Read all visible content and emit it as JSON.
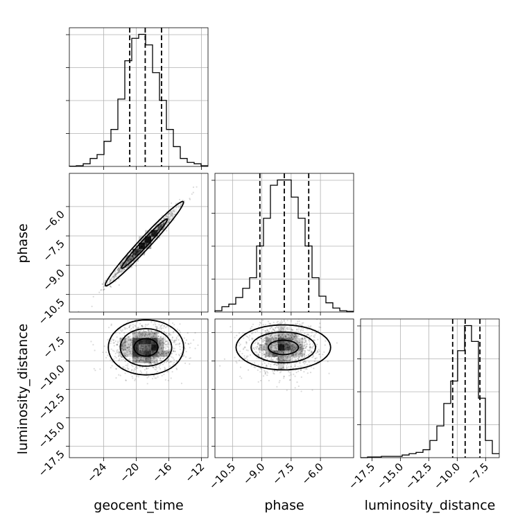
{
  "chart_data": {
    "type": "corner",
    "parameters": [
      "geocent_time",
      "phase",
      "luminosity_distance"
    ],
    "axis_labels": {
      "x": [
        "geocent_time",
        "phase",
        "luminosity_distance"
      ],
      "y_left": [
        "",
        "phase",
        "luminosity_distance"
      ]
    },
    "ranges": {
      "geocent_time": [
        -28.2,
        -11.2
      ],
      "phase": [
        -11.4,
        -4.3
      ],
      "luminosity_distance": [
        -18.5,
        -6.3
      ]
    },
    "ticks": {
      "geocent_time": [
        -24,
        -20,
        -16,
        -12
      ],
      "phase": [
        -10.5,
        -9.0,
        -7.5,
        -6.0
      ],
      "luminosity_distance": [
        -17.5,
        -15.0,
        -12.5,
        -10.0,
        -7.5
      ]
    },
    "tick_labels": {
      "geocent_time": [
        "−24",
        "−20",
        "−16",
        "−12"
      ],
      "phase": [
        "−10.5",
        "−9.0",
        "−7.5",
        "−6.0"
      ],
      "luminosity_distance": [
        "−17.5",
        "−15.0",
        "−12.5",
        "−10.0",
        "−7.5"
      ]
    },
    "histograms": [
      {
        "parameter": "geocent_time",
        "bin_edges": [
          -28.2,
          -27.35,
          -26.5,
          -25.65,
          -24.8,
          -23.95,
          -23.1,
          -22.25,
          -21.4,
          -20.55,
          -19.7,
          -18.85,
          -18.0,
          -17.15,
          -16.3,
          -15.45,
          -14.6,
          -13.75,
          -12.9,
          -12.05,
          -11.2
        ],
        "counts": [
          0.2,
          0.5,
          2,
          6,
          9,
          19,
          28,
          51,
          80,
          97,
          100,
          92,
          71,
          50,
          28,
          15,
          6,
          3,
          2,
          0.5
        ],
        "quantiles": [
          -20.8,
          -18.9,
          -16.9
        ]
      },
      {
        "parameter": "phase",
        "bin_edges": [
          -11.4,
          -11.045,
          -10.69,
          -10.335,
          -9.98,
          -9.625,
          -9.27,
          -8.915,
          -8.56,
          -8.205,
          -7.85,
          -7.495,
          -7.14,
          -6.785,
          -6.43,
          -6.075,
          -5.72,
          -5.365,
          -5.01,
          -4.655,
          -4.3
        ],
        "counts": [
          1,
          4,
          6,
          11,
          18,
          26,
          50,
          71,
          96,
          100,
          100,
          87,
          71,
          50,
          26,
          12,
          7,
          3,
          1,
          0.5
        ],
        "quantiles": [
          -9.1,
          -7.85,
          -6.6
        ]
      },
      {
        "parameter": "luminosity_distance",
        "bin_edges": [
          -18.5,
          -17.89,
          -17.28,
          -16.67,
          -16.06,
          -15.45,
          -14.84,
          -14.23,
          -13.62,
          -13.01,
          -12.4,
          -11.79,
          -11.18,
          -10.57,
          -9.96,
          -9.35,
          -8.74,
          -8.13,
          -7.52,
          -6.91,
          -6.3
        ],
        "counts": [
          0,
          0.5,
          0.5,
          1,
          1,
          1,
          2,
          3,
          4,
          6,
          13,
          24,
          41,
          58,
          81,
          100,
          88,
          45,
          13,
          3
        ],
        "quantiles": [
          -10.4,
          -9.3,
          -8.0
        ]
      }
    ],
    "joint_panels": [
      {
        "x": "geocent_time",
        "y": "phase",
        "center": [
          -19.0,
          -7.9
        ],
        "sigma": [
          2.0,
          0.9
        ],
        "correlation": 0.98,
        "contour_levels_sigma": [
          1.4,
          2.4
        ]
      },
      {
        "x": "geocent_time",
        "y": "luminosity_distance",
        "center": [
          -18.8,
          -8.8
        ],
        "sigma": [
          2.1,
          1.1
        ],
        "correlation": 0.0,
        "contour_levels_sigma": [
          0.7,
          1.5,
          2.2
        ]
      },
      {
        "x": "phase",
        "y": "luminosity_distance",
        "center": [
          -7.9,
          -8.8
        ],
        "sigma": [
          0.9,
          1.1
        ],
        "correlation": 0.0,
        "contour_levels_sigma": [
          0.7,
          1.5,
          2.2
        ]
      }
    ],
    "grid": true,
    "colors": {
      "line": "#000000",
      "grid": "#b0b0b0",
      "density": "#000000"
    }
  }
}
